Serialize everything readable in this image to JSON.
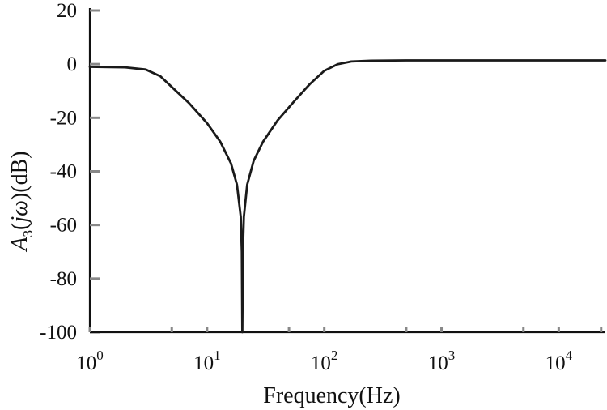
{
  "chart_data": {
    "type": "line",
    "title": "",
    "xlabel": "Frequency(Hz)",
    "ylabel": {
      "main": "A",
      "sub": "3",
      "arg_open": "(",
      "arg_var": "jω",
      "arg_close": ")",
      "unit": "(dB)"
    },
    "x_scale": "log",
    "xlim": [
      1,
      25000
    ],
    "ylim": [
      -100,
      20
    ],
    "grid": false,
    "y_ticks": [
      20,
      0,
      -20,
      -40,
      -60,
      -80,
      -100
    ],
    "y_tick_labels": [
      "20",
      "0",
      "-20",
      "-40",
      "-60",
      "-80",
      "-100"
    ],
    "x_ticks": [
      1,
      10,
      100,
      1000,
      10000
    ],
    "x_tick_labels": [
      {
        "base": "10",
        "exp": "0"
      },
      {
        "base": "10",
        "exp": "1"
      },
      {
        "base": "10",
        "exp": "2"
      },
      {
        "base": "10",
        "exp": "3"
      },
      {
        "base": "10",
        "exp": "4"
      }
    ],
    "series": [
      {
        "color": "#1a1a1a",
        "x": [
          1,
          2,
          3,
          4,
          5,
          7,
          10,
          13,
          16,
          18,
          19.4,
          19.8,
          20,
          20.2,
          20.6,
          22,
          25,
          30,
          40,
          55,
          75,
          100,
          130,
          170,
          250,
          500,
          1000,
          10000,
          25000
        ],
        "y": [
          -1,
          -1.2,
          -2,
          -4.5,
          -8.5,
          -14.5,
          -22,
          -29,
          -37,
          -45,
          -57,
          -70,
          -100,
          -70,
          -57,
          -45,
          -36,
          -29,
          -21,
          -14,
          -7.5,
          -2.5,
          0,
          1,
          1.3,
          1.4,
          1.4,
          1.4,
          1.4
        ]
      }
    ]
  }
}
